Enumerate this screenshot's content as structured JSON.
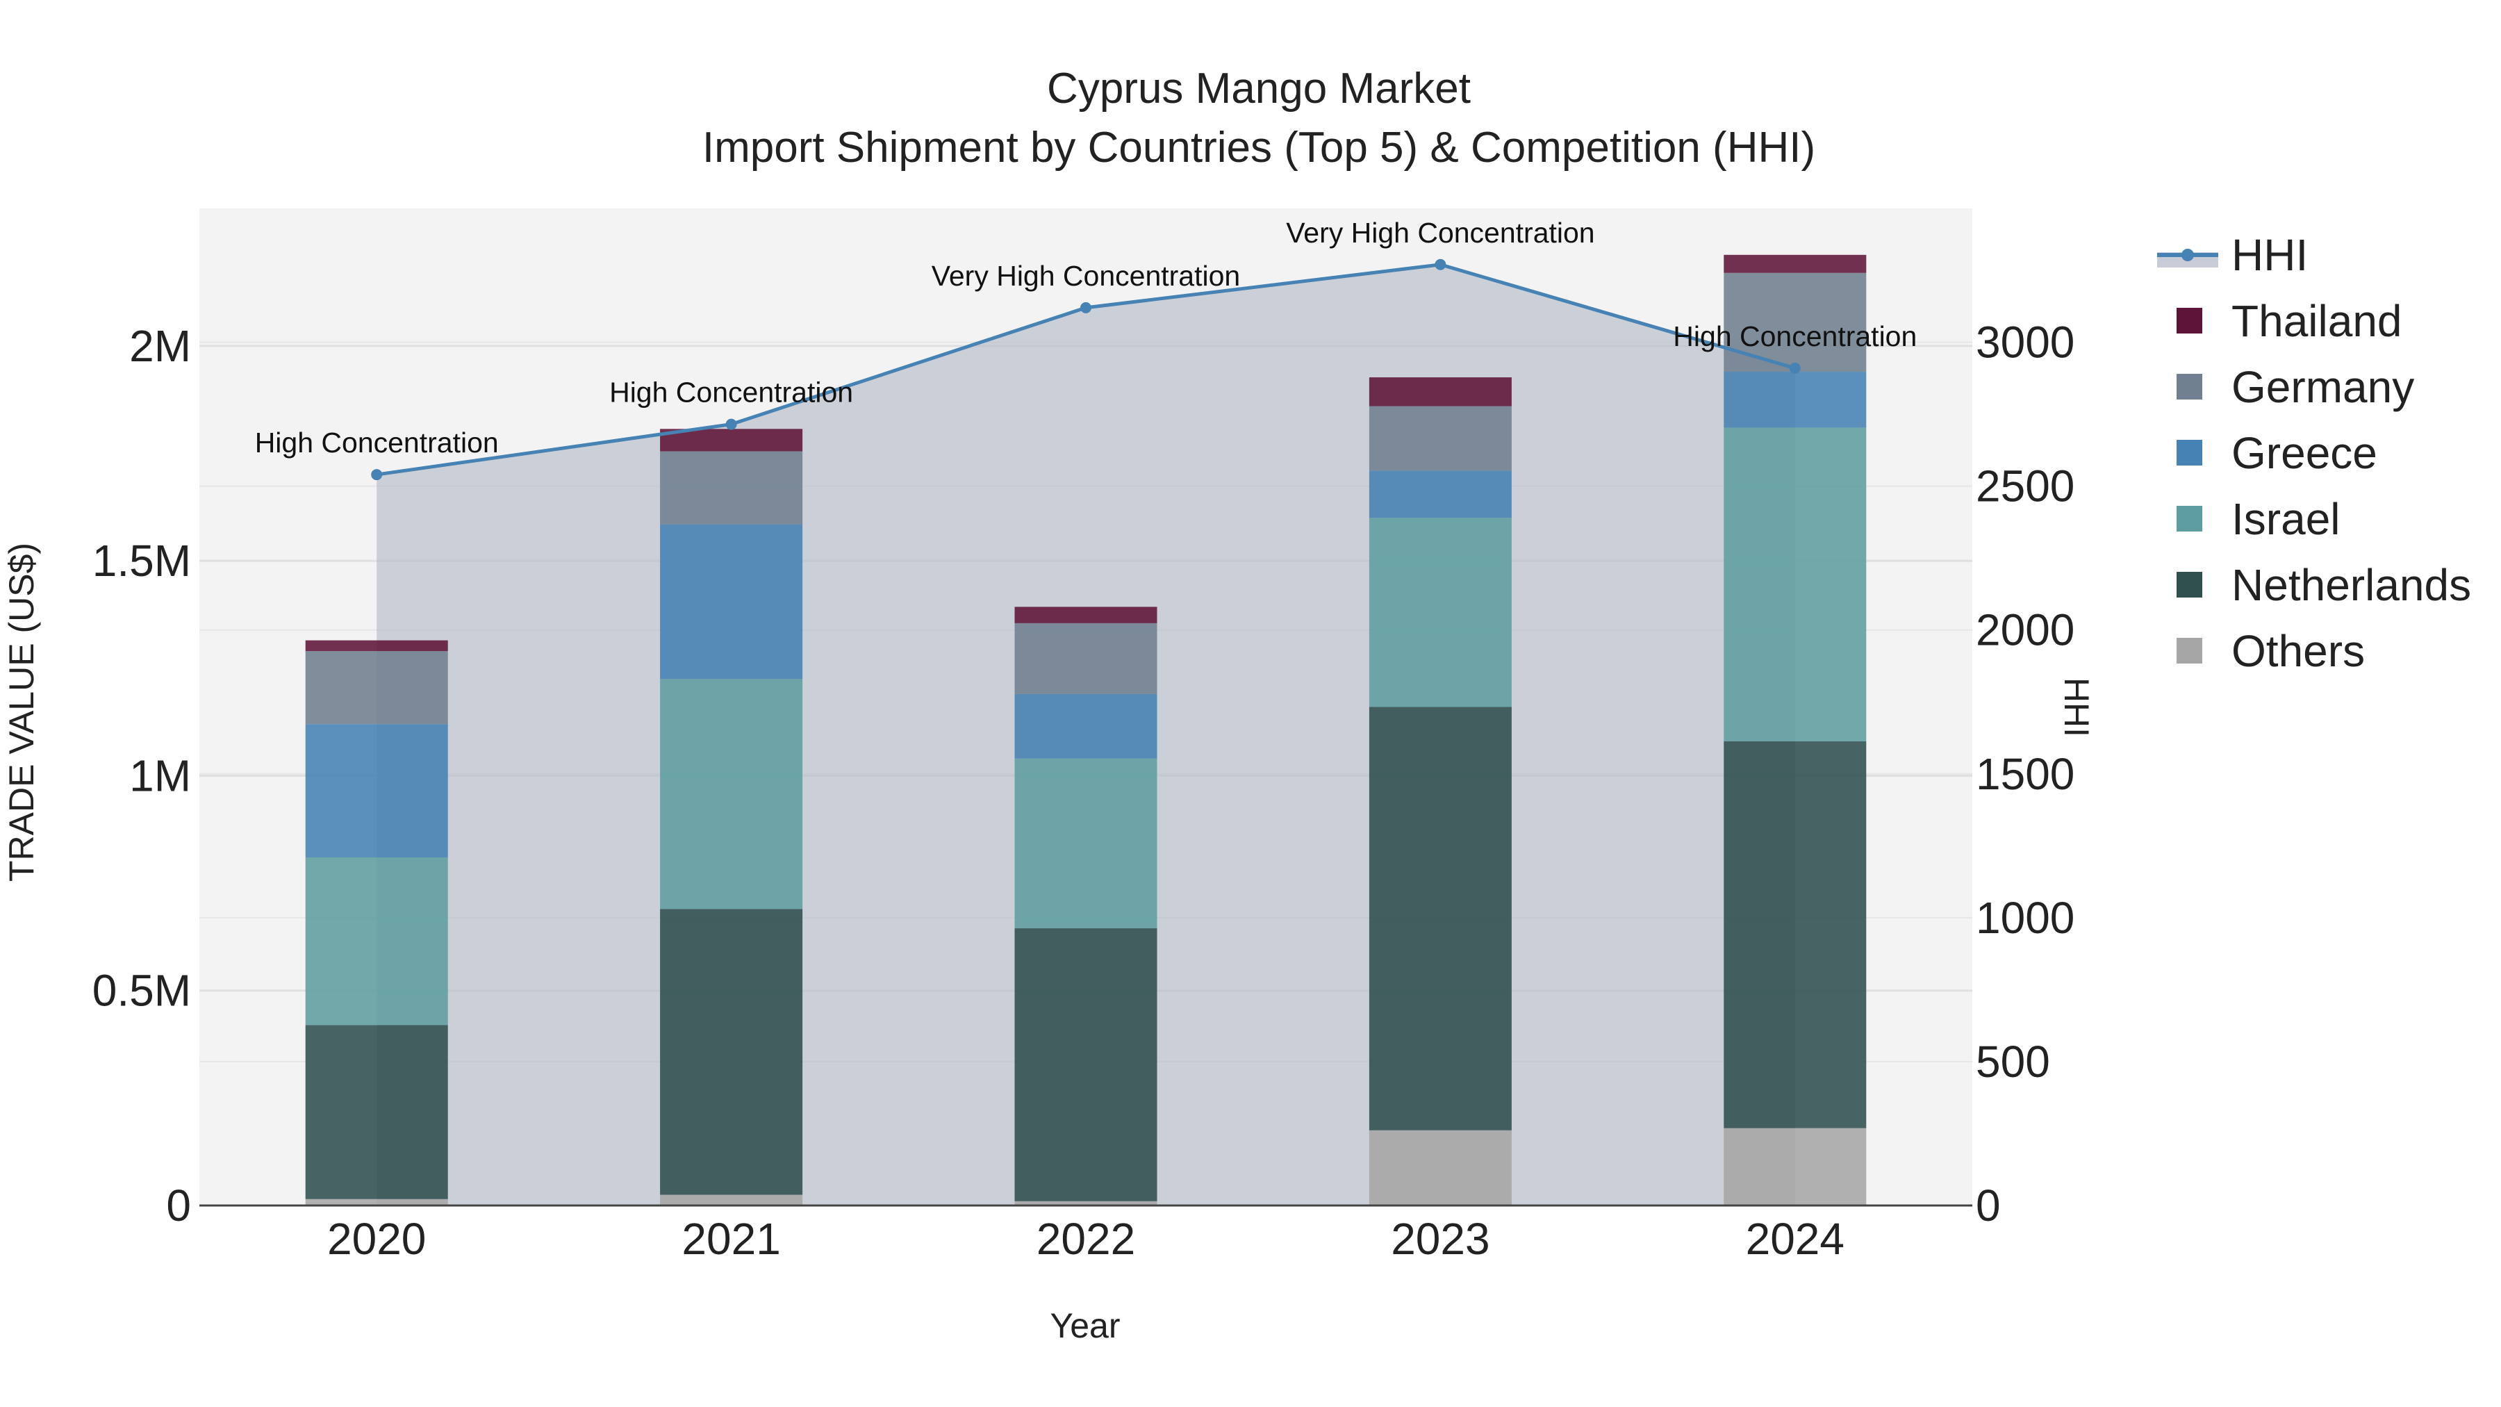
{
  "chart_data": {
    "type": "bar",
    "title": "Cyprus Mango Market",
    "subtitle": "Import Shipment by Countries (Top 5) & Competition (HHI)",
    "xlabel": "Year",
    "ylabel": "TRADE VALUE (US$)",
    "y2label": "HHI",
    "categories": [
      "2020",
      "2021",
      "2022",
      "2023",
      "2024"
    ],
    "ylim": [
      0,
      2320000
    ],
    "y2lim": [
      0,
      3465
    ],
    "yticks": [
      {
        "value": 0,
        "label": "0"
      },
      {
        "value": 500000,
        "label": "0.5M"
      },
      {
        "value": 1000000,
        "label": "1M"
      },
      {
        "value": 1500000,
        "label": "1.5M"
      },
      {
        "value": 2000000,
        "label": "2M"
      }
    ],
    "y2ticks": [
      {
        "value": 0,
        "label": "0"
      },
      {
        "value": 500,
        "label": "500"
      },
      {
        "value": 1000,
        "label": "1000"
      },
      {
        "value": 1500,
        "label": "1500"
      },
      {
        "value": 2000,
        "label": "2000"
      },
      {
        "value": 2500,
        "label": "2500"
      },
      {
        "value": 3000,
        "label": "3000"
      }
    ],
    "series": [
      {
        "name": "Others",
        "color": "#a6a6a6",
        "values": [
          15000,
          25000,
          10000,
          175000,
          180000
        ]
      },
      {
        "name": "Netherlands",
        "color": "#2f4f4f",
        "values": [
          405000,
          665000,
          635000,
          985000,
          900000
        ]
      },
      {
        "name": "Israel",
        "color": "#5f9ea0",
        "values": [
          390000,
          535000,
          395000,
          440000,
          730000
        ]
      },
      {
        "name": "Greece",
        "color": "#4682b4",
        "values": [
          310000,
          360000,
          150000,
          110000,
          130000
        ]
      },
      {
        "name": "Germany",
        "color": "#708090",
        "values": [
          170000,
          170000,
          165000,
          150000,
          230000
        ]
      },
      {
        "name": "Thailand",
        "color": "#5e1438",
        "values": [
          25000,
          52000,
          38000,
          67000,
          42000
        ]
      }
    ],
    "hhi": {
      "name": "HHI",
      "color": "#4682b4",
      "values": [
        2540,
        2715,
        3120,
        3270,
        2910
      ],
      "annotations": [
        "High Concentration",
        "High Concentration",
        "Very High Concentration",
        "Very High Concentration",
        "High Concentration"
      ]
    },
    "legend": [
      "HHI",
      "Thailand",
      "Germany",
      "Greece",
      "Israel",
      "Netherlands",
      "Others"
    ],
    "legend_position": "right"
  }
}
